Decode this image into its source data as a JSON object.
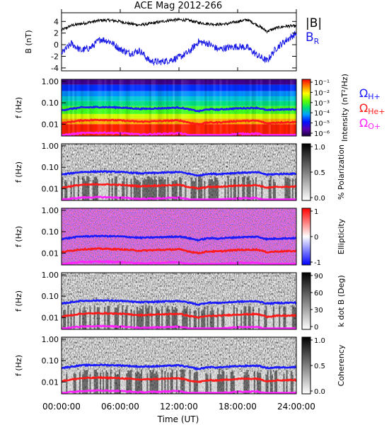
{
  "title": "ACE Mag 2012-266",
  "time_axis": {
    "label": "Time (UT)",
    "ticks": [
      "00:00:00",
      "06:00:00",
      "12:00:00",
      "18:00:00",
      "24:00:00"
    ],
    "range_hours": [
      0,
      24
    ]
  },
  "colors": {
    "total_field": "#000000",
    "radial_field": "#1a1ae6",
    "cyclotron_h": "#1a1aff",
    "cyclotron_he": "#ff1a1a",
    "cyclotron_o": "#ff22ff"
  },
  "legend": {
    "total_field": "|B|",
    "radial_field": "BR",
    "cyclotron_h": "ΩH+",
    "cyclotron_he": "ΩHe+",
    "cyclotron_o": "ΩO+"
  },
  "chart_data": [
    {
      "type": "line",
      "ylabel": "B (nT)",
      "ylim": [
        -4.5,
        5.5
      ],
      "yticks": [
        "4",
        "2",
        "0",
        "-2",
        "-4"
      ],
      "x_hours": [
        0,
        1,
        2,
        3,
        4,
        5,
        6,
        7,
        8,
        9,
        10,
        11,
        12,
        13,
        14,
        15,
        16,
        17,
        18,
        19,
        20,
        21,
        22,
        23,
        24
      ],
      "series": [
        {
          "name": "|B|",
          "values": [
            2.5,
            3.3,
            3.6,
            3.9,
            4.2,
            4.2,
            4.0,
            3.6,
            3.4,
            3.6,
            3.9,
            4.2,
            4.3,
            4.2,
            3.8,
            3.6,
            3.5,
            3.6,
            4.0,
            4.3,
            3.4,
            2.3,
            2.9,
            3.2,
            3.2
          ]
        },
        {
          "name": "BR",
          "values": [
            -1.5,
            0.2,
            -1.0,
            -0.5,
            1.0,
            0.5,
            -0.8,
            -1.5,
            -1.0,
            -2.8,
            -3.0,
            -2.7,
            -2.2,
            -1.3,
            0.5,
            0.2,
            -0.8,
            -0.5,
            -0.3,
            -0.5,
            -1.8,
            -2.8,
            -0.5,
            0.8,
            2.0
          ]
        }
      ]
    },
    {
      "type": "heatmap",
      "ylabel": "f (Hz)",
      "yticks": [
        "1.00",
        "0.10",
        "0.01"
      ],
      "colorbar_label": "Intensity (nT²/Hz)",
      "colorbar_ticks": [
        "10⁻¹",
        "10⁻²",
        "10⁻³",
        "10⁻⁴",
        "10⁻⁵",
        "10⁻⁶"
      ],
      "colorbar_range_log": [
        -6.5,
        -0.5
      ]
    },
    {
      "type": "heatmap",
      "ylabel": "f (Hz)",
      "yticks": [
        "1.00",
        "0.10",
        "0.01"
      ],
      "colorbar_label": "% Polarization",
      "colorbar_ticks": [
        "1.0",
        "0.5",
        "0.0"
      ],
      "colorbar_range": [
        0,
        1
      ]
    },
    {
      "type": "heatmap",
      "ylabel": "f (Hz)",
      "yticks": [
        "1.00",
        "0.10",
        "0.01"
      ],
      "colorbar_label": "Ellipticity",
      "colorbar_ticks": [
        "1",
        "0",
        "-1"
      ],
      "colorbar_range": [
        -1,
        1
      ]
    },
    {
      "type": "heatmap",
      "ylabel": "f (Hz)",
      "yticks": [
        "1.00",
        "0.10",
        "0.01"
      ],
      "colorbar_label": "k dot B (Deg)",
      "colorbar_ticks": [
        "90",
        "60",
        "30",
        "0"
      ],
      "colorbar_range": [
        0,
        90
      ]
    },
    {
      "type": "heatmap",
      "ylabel": "f (Hz)",
      "yticks": [
        "1.00",
        "0.10",
        "0.01"
      ],
      "colorbar_label": "Coherency",
      "colorbar_ticks": [
        "1.0",
        "0.5",
        "0.0"
      ],
      "colorbar_range": [
        0,
        1
      ]
    }
  ],
  "cyclotron_frequencies_hz": {
    "x_hours": [
      0,
      2,
      4,
      6,
      8,
      10,
      12,
      13,
      14,
      15,
      16,
      18,
      20,
      21,
      22,
      24
    ],
    "H+": [
      0.045,
      0.06,
      0.063,
      0.06,
      0.052,
      0.055,
      0.06,
      0.05,
      0.04,
      0.05,
      0.048,
      0.055,
      0.058,
      0.045,
      0.048,
      0.05
    ],
    "He+": [
      0.011,
      0.015,
      0.016,
      0.015,
      0.013,
      0.014,
      0.015,
      0.012,
      0.01,
      0.012,
      0.012,
      0.014,
      0.0145,
      0.011,
      0.012,
      0.0125
    ],
    "O+": [
      0.003,
      0.0038,
      0.004,
      0.0038,
      0.0033,
      0.0035,
      0.0038,
      0.0031,
      0.0025,
      0.0031,
      0.003,
      0.0035,
      0.0036,
      0.0028,
      0.003,
      0.0031
    ]
  }
}
